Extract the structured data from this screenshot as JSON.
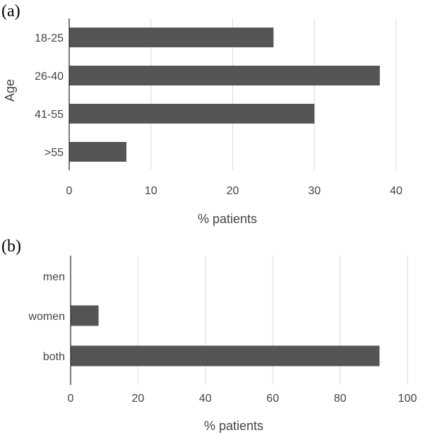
{
  "colors": {
    "bar": "#555555",
    "grid": "#d9d9d9",
    "axis": "#222222",
    "text": "#444444"
  },
  "chart_data": [
    {
      "panel_label": "(a)",
      "type": "bar",
      "orientation": "horizontal",
      "categories": [
        "18-25",
        "26-40",
        "41-55",
        ">55"
      ],
      "values": [
        25,
        38,
        30,
        7
      ],
      "xlabel": "% patients",
      "ylabel": "Age",
      "xlim": [
        0,
        40
      ],
      "xticks": [
        0,
        10,
        20,
        30,
        40
      ],
      "grid": "vertical"
    },
    {
      "panel_label": "(b)",
      "type": "bar",
      "orientation": "horizontal",
      "categories": [
        "men",
        "women",
        "both"
      ],
      "values": [
        0,
        8.3,
        91.7
      ],
      "xlabel": "% patients",
      "ylabel": "",
      "xlim": [
        0,
        100
      ],
      "xticks": [
        0,
        20,
        40,
        60,
        80,
        100
      ],
      "grid": "vertical"
    }
  ]
}
